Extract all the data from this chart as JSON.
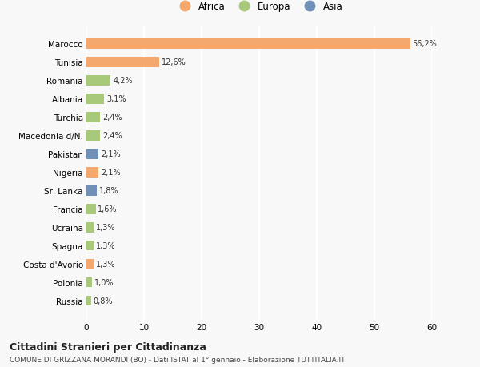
{
  "countries": [
    "Russia",
    "Polonia",
    "Costa d'Avorio",
    "Spagna",
    "Ucraina",
    "Francia",
    "Sri Lanka",
    "Nigeria",
    "Pakistan",
    "Macedonia d/N.",
    "Turchia",
    "Albania",
    "Romania",
    "Tunisia",
    "Marocco"
  ],
  "values": [
    0.8,
    1.0,
    1.3,
    1.3,
    1.3,
    1.6,
    1.8,
    2.1,
    2.1,
    2.4,
    2.4,
    3.1,
    4.2,
    12.6,
    56.2
  ],
  "labels": [
    "0,8%",
    "1,0%",
    "1,3%",
    "1,3%",
    "1,3%",
    "1,6%",
    "1,8%",
    "2,1%",
    "2,1%",
    "2,4%",
    "2,4%",
    "3,1%",
    "4,2%",
    "12,6%",
    "56,2%"
  ],
  "colors": [
    "#a8c87a",
    "#a8c87a",
    "#f5a86e",
    "#a8c87a",
    "#a8c87a",
    "#a8c87a",
    "#7090b8",
    "#f5a86e",
    "#7090b8",
    "#a8c87a",
    "#a8c87a",
    "#a8c87a",
    "#a8c87a",
    "#f5a86e",
    "#f5a86e"
  ],
  "africa_color": "#f5a86e",
  "europa_color": "#a8c87a",
  "asia_color": "#7090b8",
  "title": "Cittadini Stranieri per Cittadinanza",
  "subtitle": "COMUNE DI GRIZZANA MORANDI (BO) - Dati ISTAT al 1° gennaio - Elaborazione TUTTITALIA.IT",
  "xlim": [
    0,
    60
  ],
  "xticks": [
    0,
    10,
    20,
    30,
    40,
    50,
    60
  ],
  "bg_color": "#f8f8f8",
  "bar_height": 0.55
}
